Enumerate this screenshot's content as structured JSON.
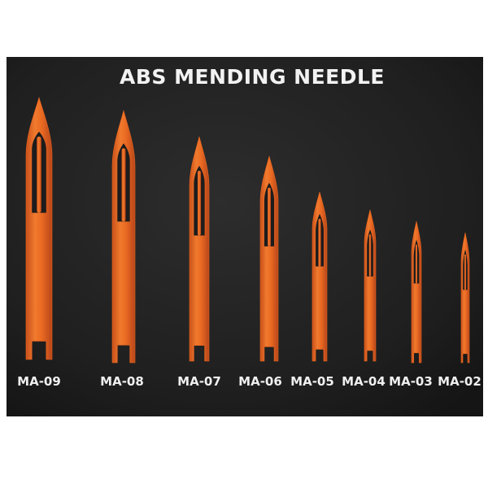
{
  "photo": {
    "title": "ABS MENDING NEEDLE",
    "background_color": "#202020",
    "needle_color": "#e8641e",
    "needles": [
      {
        "label": "MA-09"
      },
      {
        "label": "MA-08"
      },
      {
        "label": "MA-07"
      },
      {
        "label": "MA-06"
      },
      {
        "label": "MA-05"
      },
      {
        "label": "MA-04"
      },
      {
        "label": "MA-03"
      },
      {
        "label": "MA-02"
      }
    ]
  }
}
